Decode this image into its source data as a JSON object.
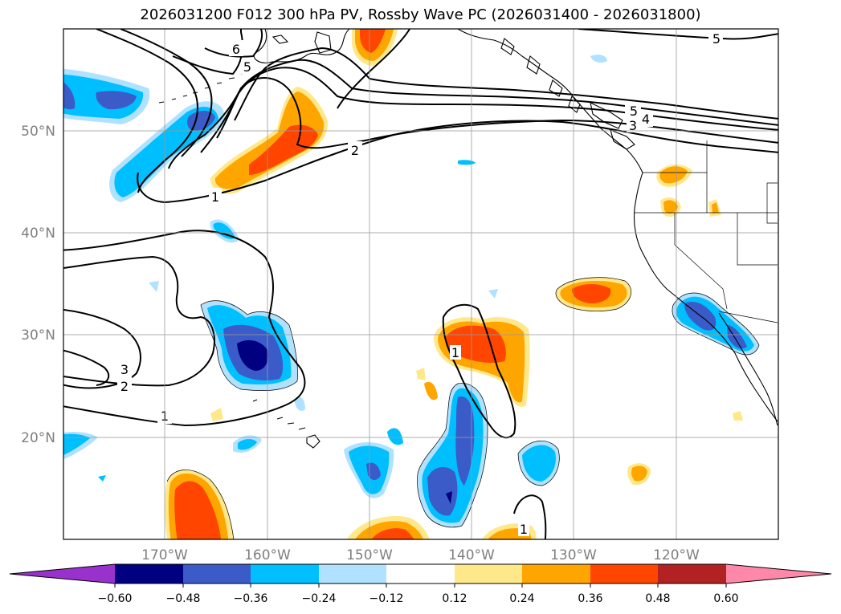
{
  "map": {
    "title": "2026031200 F012 300 hPa PV, Rossby Wave PC (2026031400 - 2026031800)",
    "lat_labels": [
      "50°N",
      "40°N",
      "30°N",
      "20°N"
    ],
    "lon_labels": [
      "170°W",
      "160°W",
      "150°W",
      "140°W",
      "130°W",
      "120°W"
    ],
    "contour_labels": {
      "one": "1",
      "two": "2",
      "three": "3",
      "four": "4",
      "five": "5",
      "six": "6"
    }
  },
  "colorbar": {
    "tick_labels": [
      "−0.60",
      "−0.48",
      "−0.36",
      "−0.24",
      "−0.12",
      "0.12",
      "0.24",
      "0.36",
      "0.48",
      "0.60"
    ],
    "colors": [
      "#9932cc",
      "#000080",
      "#3a5bc8",
      "#00bfff",
      "#b0e2ff",
      "#ffffff",
      "#ffe88a",
      "#ffa500",
      "#ff4500",
      "#b22222",
      "#ff88aa"
    ]
  },
  "fill_colors": {
    "light_blue": "#b0e2ff",
    "blue": "#00bfff",
    "royal_blue": "#3a5bc8",
    "navy": "#000080",
    "light_yellow": "#ffe88a",
    "orange": "#ffa500",
    "red_orange": "#ff4500"
  }
}
